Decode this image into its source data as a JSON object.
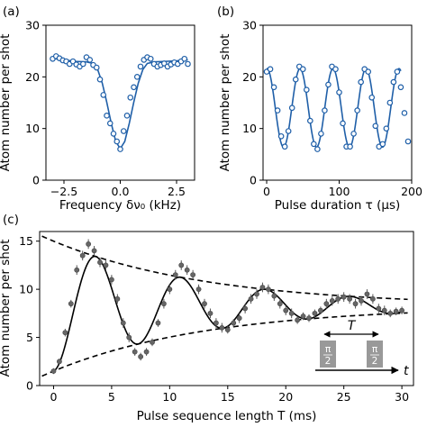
{
  "chart_data": [
    {
      "panel_label": "(a)",
      "type": "scatter",
      "xlabel": "Frequency δν₀ (kHz)",
      "ylabel": "Atom number per shot",
      "xlim": [
        -3.3,
        3.3
      ],
      "ylim": [
        0,
        30
      ],
      "xticks": [
        -2.5,
        0.0,
        2.5
      ],
      "xtick_labels": [
        "−2.5",
        "0.0",
        "2.5"
      ],
      "yticks": [
        0,
        10,
        20,
        30
      ],
      "ytick_labels": [
        "0",
        "10",
        "20",
        "30"
      ],
      "colors": {
        "points": "#1f5fa8",
        "fit": "#1f5fa8"
      },
      "series": [
        {
          "role": "data",
          "marker": "open-circle",
          "points": [
            [
              -3.0,
              23.5
            ],
            [
              -2.85,
              24.0
            ],
            [
              -2.7,
              23.6
            ],
            [
              -2.55,
              23.2
            ],
            [
              -2.4,
              23.0
            ],
            [
              -2.25,
              22.5
            ],
            [
              -2.1,
              23.0
            ],
            [
              -1.95,
              22.4
            ],
            [
              -1.8,
              22.0
            ],
            [
              -1.65,
              22.5
            ],
            [
              -1.5,
              23.8
            ],
            [
              -1.35,
              23.3
            ],
            [
              -1.2,
              22.3
            ],
            [
              -1.05,
              21.8
            ],
            [
              -0.9,
              19.5
            ],
            [
              -0.75,
              16.5
            ],
            [
              -0.6,
              12.5
            ],
            [
              -0.45,
              11.0
            ],
            [
              -0.3,
              9.0
            ],
            [
              -0.15,
              7.5
            ],
            [
              0.0,
              6.0
            ],
            [
              0.15,
              9.5
            ],
            [
              0.3,
              12.5
            ],
            [
              0.45,
              16.0
            ],
            [
              0.6,
              18.0
            ],
            [
              0.75,
              20.0
            ],
            [
              0.9,
              22.0
            ],
            [
              1.05,
              23.3
            ],
            [
              1.2,
              23.8
            ],
            [
              1.35,
              23.5
            ],
            [
              1.5,
              22.5
            ],
            [
              1.65,
              22.0
            ],
            [
              1.8,
              22.3
            ],
            [
              1.95,
              22.6
            ],
            [
              2.1,
              22.0
            ],
            [
              2.25,
              22.4
            ],
            [
              2.4,
              22.8
            ],
            [
              2.55,
              22.5
            ],
            [
              2.7,
              23.0
            ],
            [
              2.85,
              23.5
            ],
            [
              3.0,
              22.5
            ]
          ]
        },
        {
          "role": "fit",
          "style": "solid",
          "points": [
            [
              -3.0,
              23.6
            ],
            [
              -2.5,
              23.3
            ],
            [
              -2.0,
              23.0
            ],
            [
              -1.5,
              22.9
            ],
            [
              -1.2,
              22.6
            ],
            [
              -1.0,
              21.4
            ],
            [
              -0.8,
              18.8
            ],
            [
              -0.6,
              15.1
            ],
            [
              -0.4,
              11.0
            ],
            [
              -0.2,
              7.5
            ],
            [
              0.0,
              6.1
            ],
            [
              0.2,
              7.5
            ],
            [
              0.4,
              11.0
            ],
            [
              0.6,
              15.1
            ],
            [
              0.8,
              18.8
            ],
            [
              1.0,
              21.4
            ],
            [
              1.2,
              22.6
            ],
            [
              1.5,
              22.9
            ],
            [
              2.0,
              23.0
            ],
            [
              2.5,
              23.1
            ],
            [
              3.0,
              23.3
            ]
          ]
        }
      ]
    },
    {
      "panel_label": "(b)",
      "type": "scatter",
      "xlabel": "Pulse duration τ (µs)",
      "ylabel": "Atom number per shot",
      "xlim": [
        -5,
        200
      ],
      "ylim": [
        0,
        30
      ],
      "xticks": [
        0,
        100,
        200
      ],
      "xtick_labels": [
        "0",
        "100",
        "200"
      ],
      "yticks": [
        0,
        10,
        20,
        30
      ],
      "ytick_labels": [
        "0",
        "10",
        "20",
        "30"
      ],
      "colors": {
        "points": "#1f5fa8",
        "fit": "#1f5fa8"
      },
      "series": [
        {
          "role": "data",
          "marker": "open-circle",
          "points": [
            [
              0,
              21.0
            ],
            [
              5,
              21.5
            ],
            [
              10,
              18.0
            ],
            [
              15,
              13.5
            ],
            [
              20,
              8.5
            ],
            [
              25,
              6.5
            ],
            [
              30,
              9.5
            ],
            [
              35,
              14.0
            ],
            [
              40,
              19.5
            ],
            [
              45,
              22.0
            ],
            [
              50,
              21.5
            ],
            [
              55,
              17.5
            ],
            [
              60,
              11.5
            ],
            [
              65,
              7.0
            ],
            [
              70,
              6.0
            ],
            [
              75,
              9.0
            ],
            [
              80,
              13.5
            ],
            [
              85,
              18.5
            ],
            [
              90,
              22.0
            ],
            [
              95,
              21.5
            ],
            [
              100,
              17.0
            ],
            [
              105,
              11.0
            ],
            [
              110,
              6.5
            ],
            [
              115,
              6.5
            ],
            [
              120,
              9.0
            ],
            [
              125,
              13.5
            ],
            [
              130,
              19.0
            ],
            [
              135,
              21.5
            ],
            [
              140,
              21.0
            ],
            [
              145,
              16.0
            ],
            [
              150,
              10.5
            ],
            [
              155,
              6.5
            ],
            [
              160,
              7.0
            ],
            [
              165,
              10.0
            ],
            [
              170,
              15.0
            ],
            [
              175,
              19.0
            ],
            [
              180,
              21.0
            ],
            [
              185,
              18.0
            ],
            [
              190,
              13.0
            ],
            [
              195,
              7.5
            ]
          ]
        },
        {
          "role": "fit",
          "style": "solid",
          "function": "damped-cosine",
          "params": {
            "offset": 14.0,
            "amplitude": 7.6,
            "period_us": 45.5,
            "phase_us": 0.5,
            "x_from": 0,
            "x_to": 185
          }
        }
      ]
    },
    {
      "panel_label": "(c)",
      "type": "scatter",
      "xlabel": "Pulse sequence length T (ms)",
      "ylabel": "Atom number per shot",
      "xlim": [
        -1.2,
        31
      ],
      "ylim": [
        0,
        16
      ],
      "xticks": [
        0,
        5,
        10,
        15,
        20,
        25,
        30
      ],
      "xtick_labels": [
        "0",
        "5",
        "10",
        "15",
        "20",
        "25",
        "30"
      ],
      "yticks": [
        0,
        5,
        10,
        15
      ],
      "ytick_labels": [
        "0",
        "5",
        "10",
        "15"
      ],
      "colors": {
        "points": "#666666",
        "fit": "#000000"
      },
      "series": [
        {
          "role": "data",
          "marker": "filled-circle-errorbar",
          "points": [
            [
              0.0,
              1.5,
              0.3
            ],
            [
              0.5,
              2.5,
              0.3
            ],
            [
              1.0,
              5.5,
              0.4
            ],
            [
              1.5,
              8.5,
              0.4
            ],
            [
              2.0,
              12.0,
              0.5
            ],
            [
              2.5,
              13.5,
              0.5
            ],
            [
              3.0,
              14.7,
              0.5
            ],
            [
              3.5,
              14.0,
              0.5
            ],
            [
              4.0,
              12.8,
              0.5
            ],
            [
              4.5,
              12.5,
              0.5
            ],
            [
              5.0,
              11.0,
              0.5
            ],
            [
              5.5,
              9.0,
              0.5
            ],
            [
              6.0,
              6.5,
              0.5
            ],
            [
              6.5,
              5.0,
              0.5
            ],
            [
              7.0,
              3.5,
              0.4
            ],
            [
              7.5,
              3.0,
              0.4
            ],
            [
              8.0,
              3.5,
              0.4
            ],
            [
              8.5,
              4.5,
              0.4
            ],
            [
              9.0,
              6.5,
              0.4
            ],
            [
              9.5,
              8.5,
              0.5
            ],
            [
              10.0,
              10.0,
              0.5
            ],
            [
              10.5,
              11.5,
              0.5
            ],
            [
              11.0,
              12.5,
              0.5
            ],
            [
              11.5,
              12.0,
              0.5
            ],
            [
              12.0,
              11.5,
              0.5
            ],
            [
              12.5,
              10.0,
              0.5
            ],
            [
              13.0,
              8.5,
              0.5
            ],
            [
              13.5,
              7.5,
              0.5
            ],
            [
              14.0,
              6.5,
              0.5
            ],
            [
              14.5,
              6.0,
              0.5
            ],
            [
              15.0,
              5.8,
              0.4
            ],
            [
              15.5,
              6.5,
              0.4
            ],
            [
              16.0,
              7.0,
              0.5
            ],
            [
              16.5,
              8.0,
              0.5
            ],
            [
              17.0,
              9.0,
              0.5
            ],
            [
              17.5,
              9.5,
              0.5
            ],
            [
              18.0,
              10.2,
              0.5
            ],
            [
              18.5,
              10.0,
              0.5
            ],
            [
              19.0,
              9.3,
              0.5
            ],
            [
              19.5,
              8.5,
              0.5
            ],
            [
              20.0,
              7.8,
              0.5
            ],
            [
              20.5,
              7.5,
              0.5
            ],
            [
              21.0,
              6.8,
              0.4
            ],
            [
              21.5,
              7.2,
              0.4
            ],
            [
              22.0,
              7.0,
              0.4
            ],
            [
              22.5,
              7.5,
              0.4
            ],
            [
              23.0,
              7.8,
              0.4
            ],
            [
              23.5,
              8.5,
              0.5
            ],
            [
              24.0,
              8.8,
              0.5
            ],
            [
              24.5,
              9.0,
              0.5
            ],
            [
              25.0,
              9.2,
              0.5
            ],
            [
              25.5,
              9.0,
              0.5
            ],
            [
              26.0,
              8.5,
              0.5
            ],
            [
              26.5,
              8.8,
              0.5
            ],
            [
              27.0,
              9.5,
              0.5
            ],
            [
              27.5,
              9.0,
              0.5
            ],
            [
              28.0,
              8.0,
              0.5
            ],
            [
              28.5,
              7.8,
              0.5
            ],
            [
              29.0,
              7.5,
              0.4
            ],
            [
              29.5,
              7.7,
              0.4
            ],
            [
              30.0,
              7.8,
              0.4
            ]
          ]
        },
        {
          "role": "fit",
          "style": "solid",
          "function": "damped-oscillation",
          "params": {
            "offset": 8.25,
            "amplitude": 6.75,
            "decay_ms": 13.5,
            "period_ms": 7.3,
            "x_from": 0,
            "x_to": 30
          }
        },
        {
          "role": "envelope-upper",
          "style": "dashed",
          "function": "envelope",
          "params": {
            "offset": 8.25,
            "amplitude": 6.75,
            "decay_ms": 13.5,
            "x_from": -1.0,
            "x_to": 30.5
          }
        },
        {
          "role": "envelope-lower",
          "style": "dashed",
          "function": "envelope",
          "params": {
            "offset": 8.25,
            "amplitude": -6.75,
            "decay_ms": 13.5,
            "x_from": -1.0,
            "x_to": 30.5
          }
        }
      ],
      "inset": {
        "pulse_label": "π/2",
        "pulse_label_numerator": "π",
        "pulse_label_denominator": "2",
        "interval_label": "T",
        "time_axis_label": "t",
        "pulse_color": "#999999"
      }
    }
  ]
}
